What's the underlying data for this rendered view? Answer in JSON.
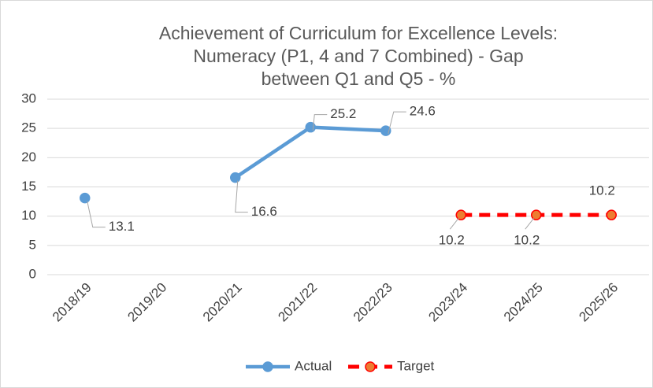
{
  "chart_data": {
    "type": "line",
    "title": [
      "Achievement of Curriculum for Excellence Levels:",
      "Numeracy (P1, 4 and 7 Combined) - Gap",
      "between Q1 and Q5 - %"
    ],
    "categories": [
      "2018/19",
      "2019/20",
      "2020/21",
      "2021/22",
      "2022/23",
      "2023/24",
      "2024/25",
      "2025/26"
    ],
    "series": [
      {
        "name": "Actual",
        "color": "#5b9bd5",
        "marker_color": "#5b9bd5",
        "dashed": false,
        "values": [
          13.1,
          null,
          16.6,
          25.2,
          24.6,
          null,
          null,
          null
        ]
      },
      {
        "name": "Target",
        "color": "#ff0000",
        "marker_color": "#ed7d31",
        "dashed": true,
        "values": [
          null,
          null,
          null,
          null,
          null,
          10.2,
          10.2,
          10.2
        ]
      }
    ],
    "ylim": [
      0,
      30
    ],
    "yticks": [
      0,
      5,
      10,
      15,
      20,
      25,
      30
    ],
    "grid": true,
    "legend": "bottom"
  }
}
